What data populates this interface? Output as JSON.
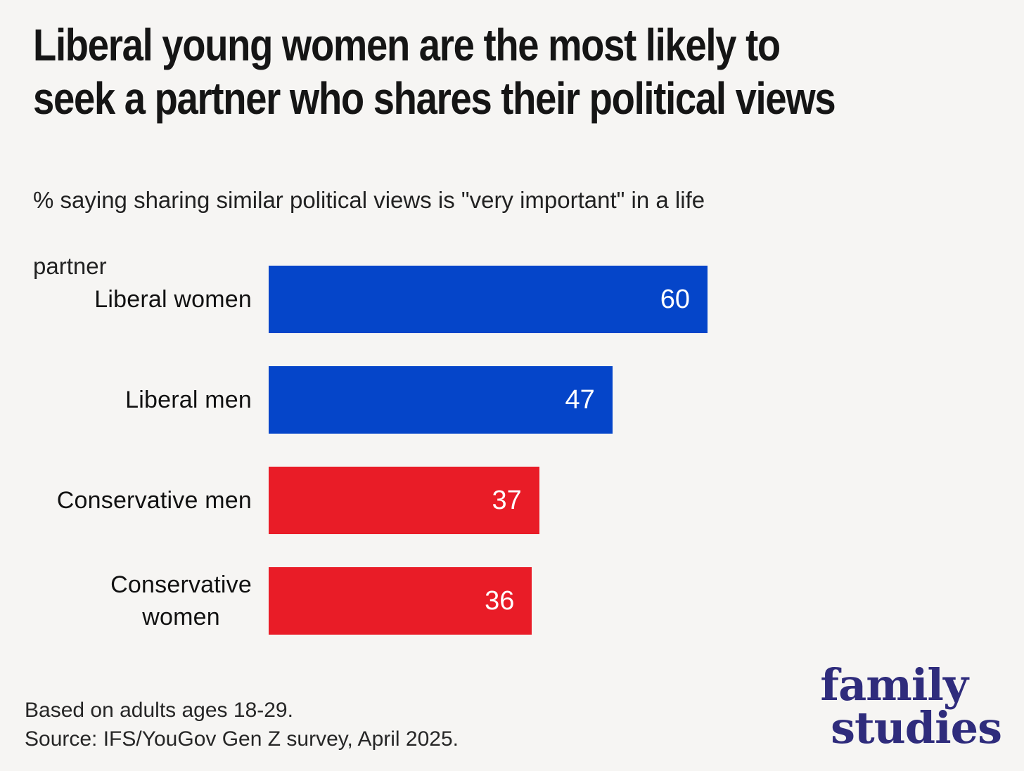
{
  "page": {
    "background": "#f6f5f3"
  },
  "header": {
    "title_lines": [
      "Liberal young women are the most likely to",
      "seek a partner who shares their political views"
    ],
    "subtitle_lines": [
      "% saying sharing similar political views is \"very important\" in a life",
      "partner"
    ]
  },
  "chart_data": {
    "type": "bar",
    "orientation": "horizontal",
    "title": "Liberal young women are the most likely to seek a partner who shares their political views",
    "subtitle": "% saying sharing similar political views is \"very important\" in a life partner",
    "categories": [
      "Liberal women",
      "Liberal men",
      "Conservative men",
      "Conservative women"
    ],
    "values": [
      60,
      47,
      37,
      36
    ],
    "bar_colors": [
      "#0545c9",
      "#0545c9",
      "#e91c27",
      "#e91c27"
    ],
    "xlim": [
      0,
      60
    ],
    "grid": false,
    "legend": false,
    "value_labels": "inside-end",
    "value_label_color": "#ffffff"
  },
  "row_labels": [
    "Liberal women",
    "Liberal men",
    "Conservative men",
    "Conservative\nwomen"
  ],
  "footer": {
    "note": "Based on adults ages 18-29.",
    "source": "Source: IFS/YouGov Gen Z survey, April 2025."
  },
  "logo": {
    "word1": "family",
    "word2": "studies",
    "color": "#2f2c7c"
  },
  "colors": {
    "liberal_blue": "#0545c9",
    "conservative_red": "#e91c27",
    "background": "#f6f5f3",
    "title_text": "#151515"
  }
}
